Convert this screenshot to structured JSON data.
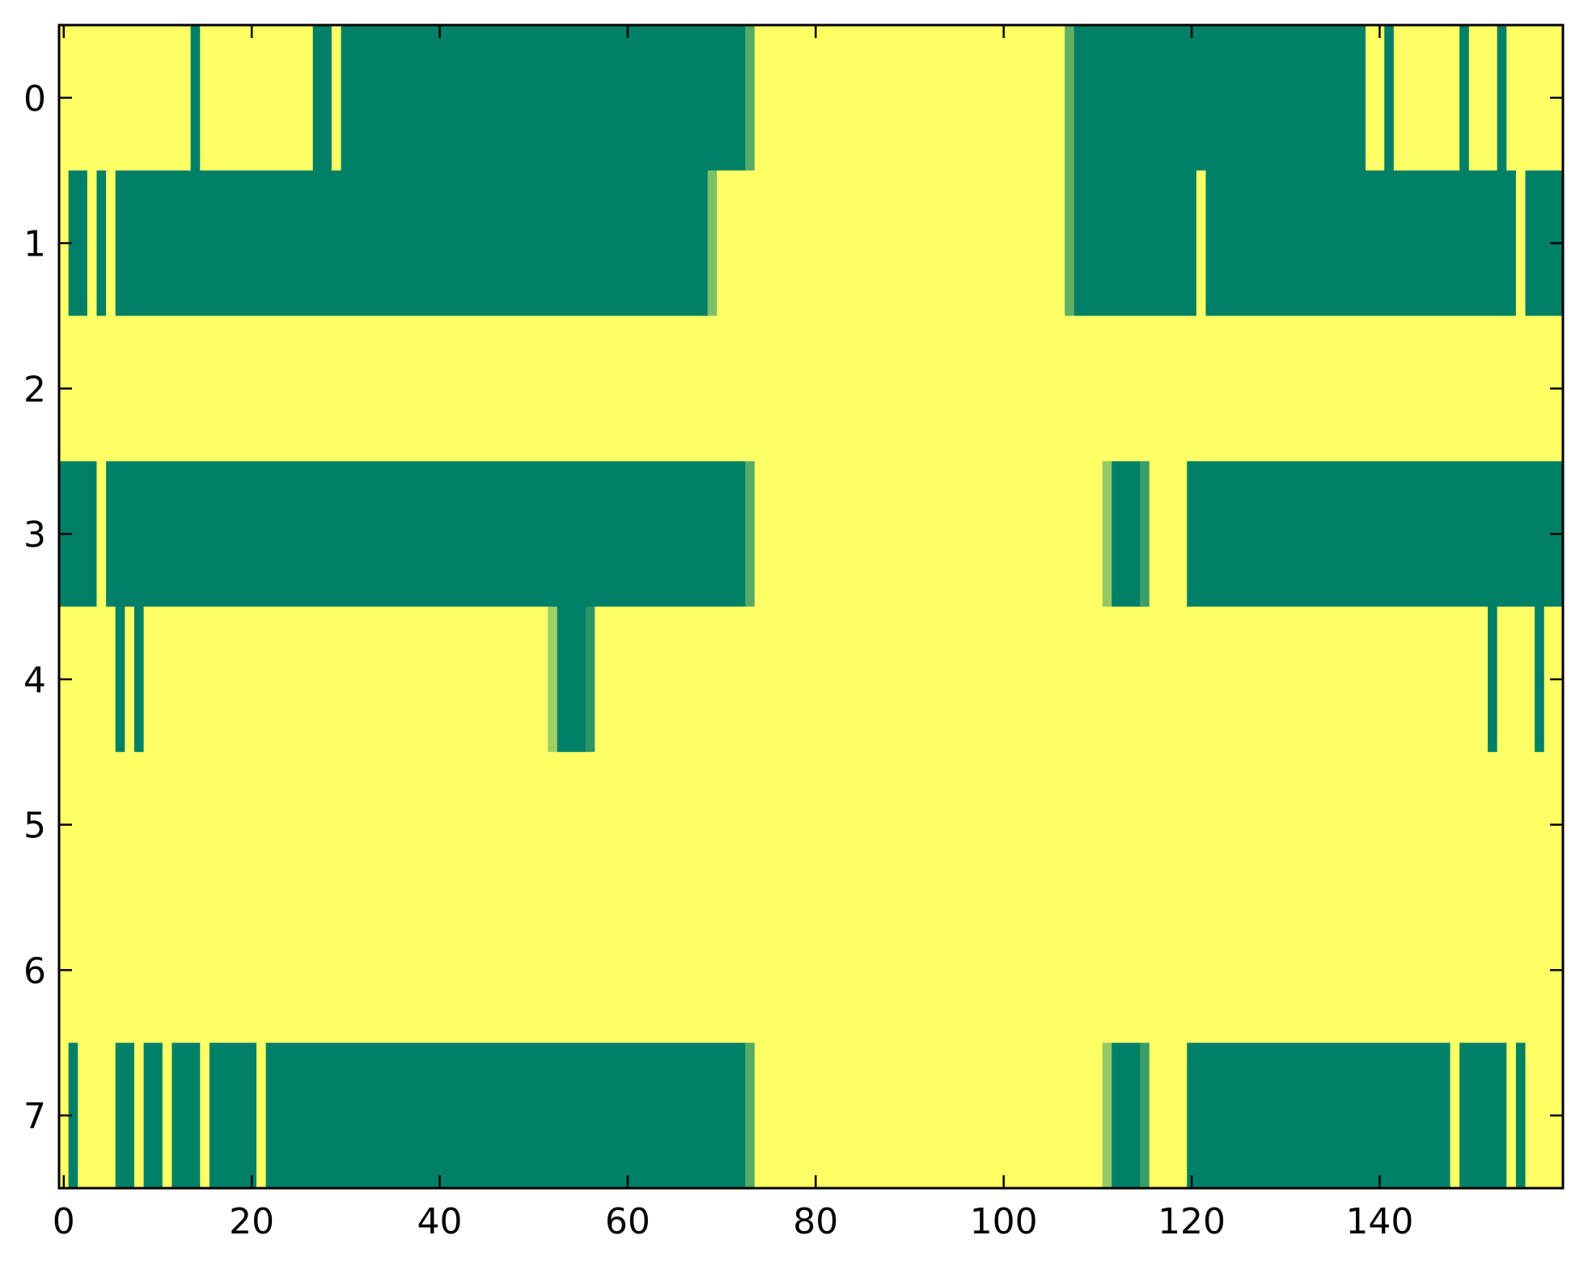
{
  "chart_data": {
    "type": "heatmap",
    "colormap": "summer",
    "colormap_endpoints": {
      "low": "#008066",
      "high": "#ffff66"
    },
    "value_range": [
      0,
      1
    ],
    "n_rows": 8,
    "n_cols": 160,
    "encoding_note": "each row is listed as runs of [value, number_of_consecutive_columns], left to right",
    "rows": [
      [
        [
          1,
          14
        ],
        [
          0,
          1
        ],
        [
          1,
          12
        ],
        [
          0,
          2
        ],
        [
          1,
          1
        ],
        [
          0,
          43
        ],
        [
          0.33,
          1
        ],
        [
          1,
          33
        ],
        [
          0.38,
          1
        ],
        [
          0,
          31
        ],
        [
          1,
          2
        ],
        [
          0,
          1
        ],
        [
          1,
          7
        ],
        [
          0,
          1
        ],
        [
          1,
          3
        ],
        [
          0,
          1
        ],
        [
          1,
          6
        ]
      ],
      [
        [
          1,
          1
        ],
        [
          0,
          2
        ],
        [
          1,
          1
        ],
        [
          0,
          1
        ],
        [
          1,
          1
        ],
        [
          0,
          63
        ],
        [
          0.5,
          1
        ],
        [
          1,
          37
        ],
        [
          0.38,
          1
        ],
        [
          0,
          13
        ],
        [
          1,
          1
        ],
        [
          0,
          33
        ],
        [
          1,
          1
        ],
        [
          0,
          4
        ]
      ],
      [
        [
          1,
          160
        ]
      ],
      [
        [
          0,
          4
        ],
        [
          1,
          1
        ],
        [
          0,
          68
        ],
        [
          0.33,
          1
        ],
        [
          1,
          37
        ],
        [
          0.58,
          1
        ],
        [
          0,
          3
        ],
        [
          0.23,
          1
        ],
        [
          1,
          4
        ],
        [
          0,
          40
        ]
      ],
      [
        [
          1,
          6
        ],
        [
          0,
          1
        ],
        [
          1,
          1
        ],
        [
          0,
          1
        ],
        [
          1,
          43
        ],
        [
          0.62,
          1
        ],
        [
          0,
          3
        ],
        [
          0.17,
          1
        ],
        [
          1,
          95
        ],
        [
          0,
          1
        ],
        [
          1,
          4
        ],
        [
          0,
          1
        ],
        [
          1,
          2
        ]
      ],
      [
        [
          1,
          160
        ]
      ],
      [
        [
          1,
          160
        ]
      ],
      [
        [
          1,
          1
        ],
        [
          0,
          1
        ],
        [
          1,
          4
        ],
        [
          0,
          2
        ],
        [
          1,
          1
        ],
        [
          0,
          2
        ],
        [
          1,
          1
        ],
        [
          0,
          3
        ],
        [
          1,
          1
        ],
        [
          0,
          5
        ],
        [
          1,
          1
        ],
        [
          0,
          51
        ],
        [
          0.33,
          1
        ],
        [
          1,
          37
        ],
        [
          0.58,
          1
        ],
        [
          0,
          3
        ],
        [
          0.23,
          1
        ],
        [
          1,
          4
        ],
        [
          0,
          28
        ],
        [
          1,
          1
        ],
        [
          0,
          5
        ],
        [
          1,
          1
        ],
        [
          0,
          1
        ],
        [
          1,
          4
        ]
      ]
    ],
    "x_ticks": [
      "0",
      "20",
      "40",
      "60",
      "80",
      "100",
      "120",
      "140"
    ],
    "x_tick_values": [
      0,
      20,
      40,
      60,
      80,
      100,
      120,
      140
    ],
    "y_ticks": [
      "0",
      "1",
      "2",
      "3",
      "4",
      "5",
      "6",
      "7"
    ],
    "y_tick_values": [
      0,
      1,
      2,
      3,
      4,
      5,
      6,
      7
    ],
    "xlim": [
      -0.5,
      159.5
    ],
    "ylim": [
      7.5,
      -0.5
    ],
    "grid": false,
    "legend": "none",
    "title": "",
    "xlabel": "",
    "ylabel": ""
  }
}
